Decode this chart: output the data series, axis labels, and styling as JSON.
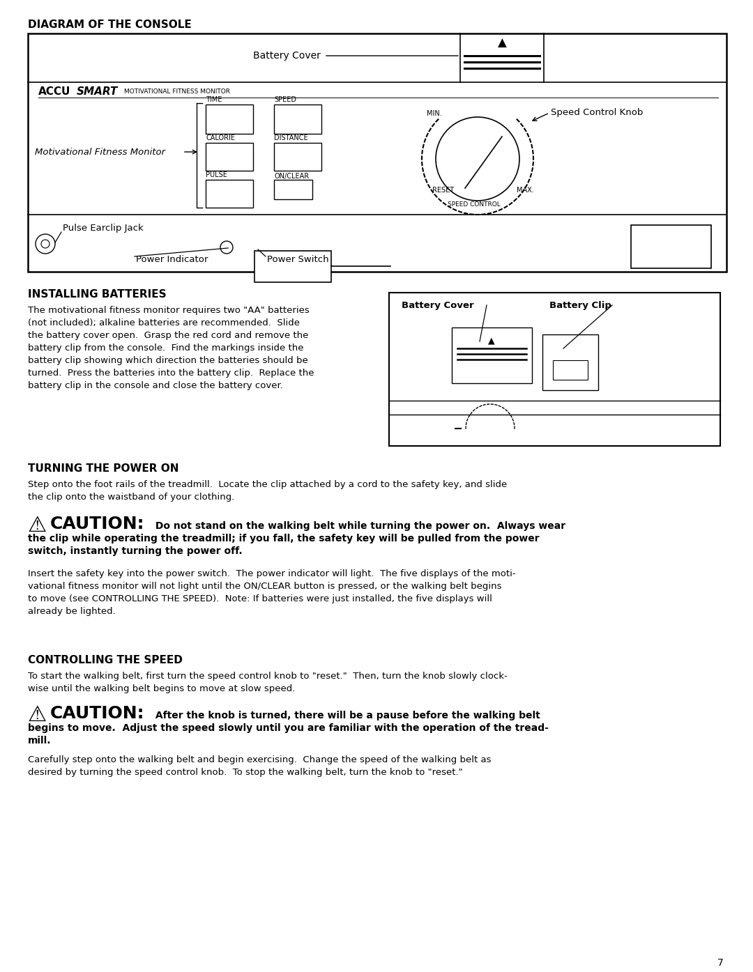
{
  "title_diagram": "DIAGRAM OF THE CONSOLE",
  "title_batteries": "INSTALLING BATTERIES",
  "title_power": "TURNING THE POWER ON",
  "title_speed": "CONTROLLING THE SPEED",
  "page_number": "7",
  "background_color": "#ffffff",
  "text_color": "#000000",
  "para_installing": "The motivational fitness monitor requires two \"AA\" batteries\n(not included); alkaline batteries are recommended.  Slide\nthe battery cover open.  Grasp the red cord and remove the\nbattery clip from the console.  Find the markings inside the\nbattery clip showing which direction the batteries should be\nturned.  Press the batteries into the battery clip.  Replace the\nbattery clip in the console and close the battery cover.",
  "para_power1": "Step onto the foot rails of the treadmill.  Locate the clip attached by a cord to the safety key, and slide\nthe clip onto the waistband of your clothing.",
  "para_power2": "Insert the safety key into the power switch.  The power indicator will light.  The five displays of the moti-\nvational fitness monitor will not light until the ON/CLEAR button is pressed, or the walking belt begins\nto move (see CONTROLLING THE SPEED).  Note: If batteries were just installed, the five displays will\nalready be lighted.",
  "para_speed1": "To start the walking belt, first turn the speed control knob to \"reset.\"  Then, turn the knob slowly clock-\nwise until the walking belt begins to move at slow speed.",
  "para_speed2": "Carefully step onto the walking belt and begin exercising.  Change the speed of the walking belt as\ndesired by turning the speed control knob.  To stop the walking belt, turn the knob to \"reset.\""
}
